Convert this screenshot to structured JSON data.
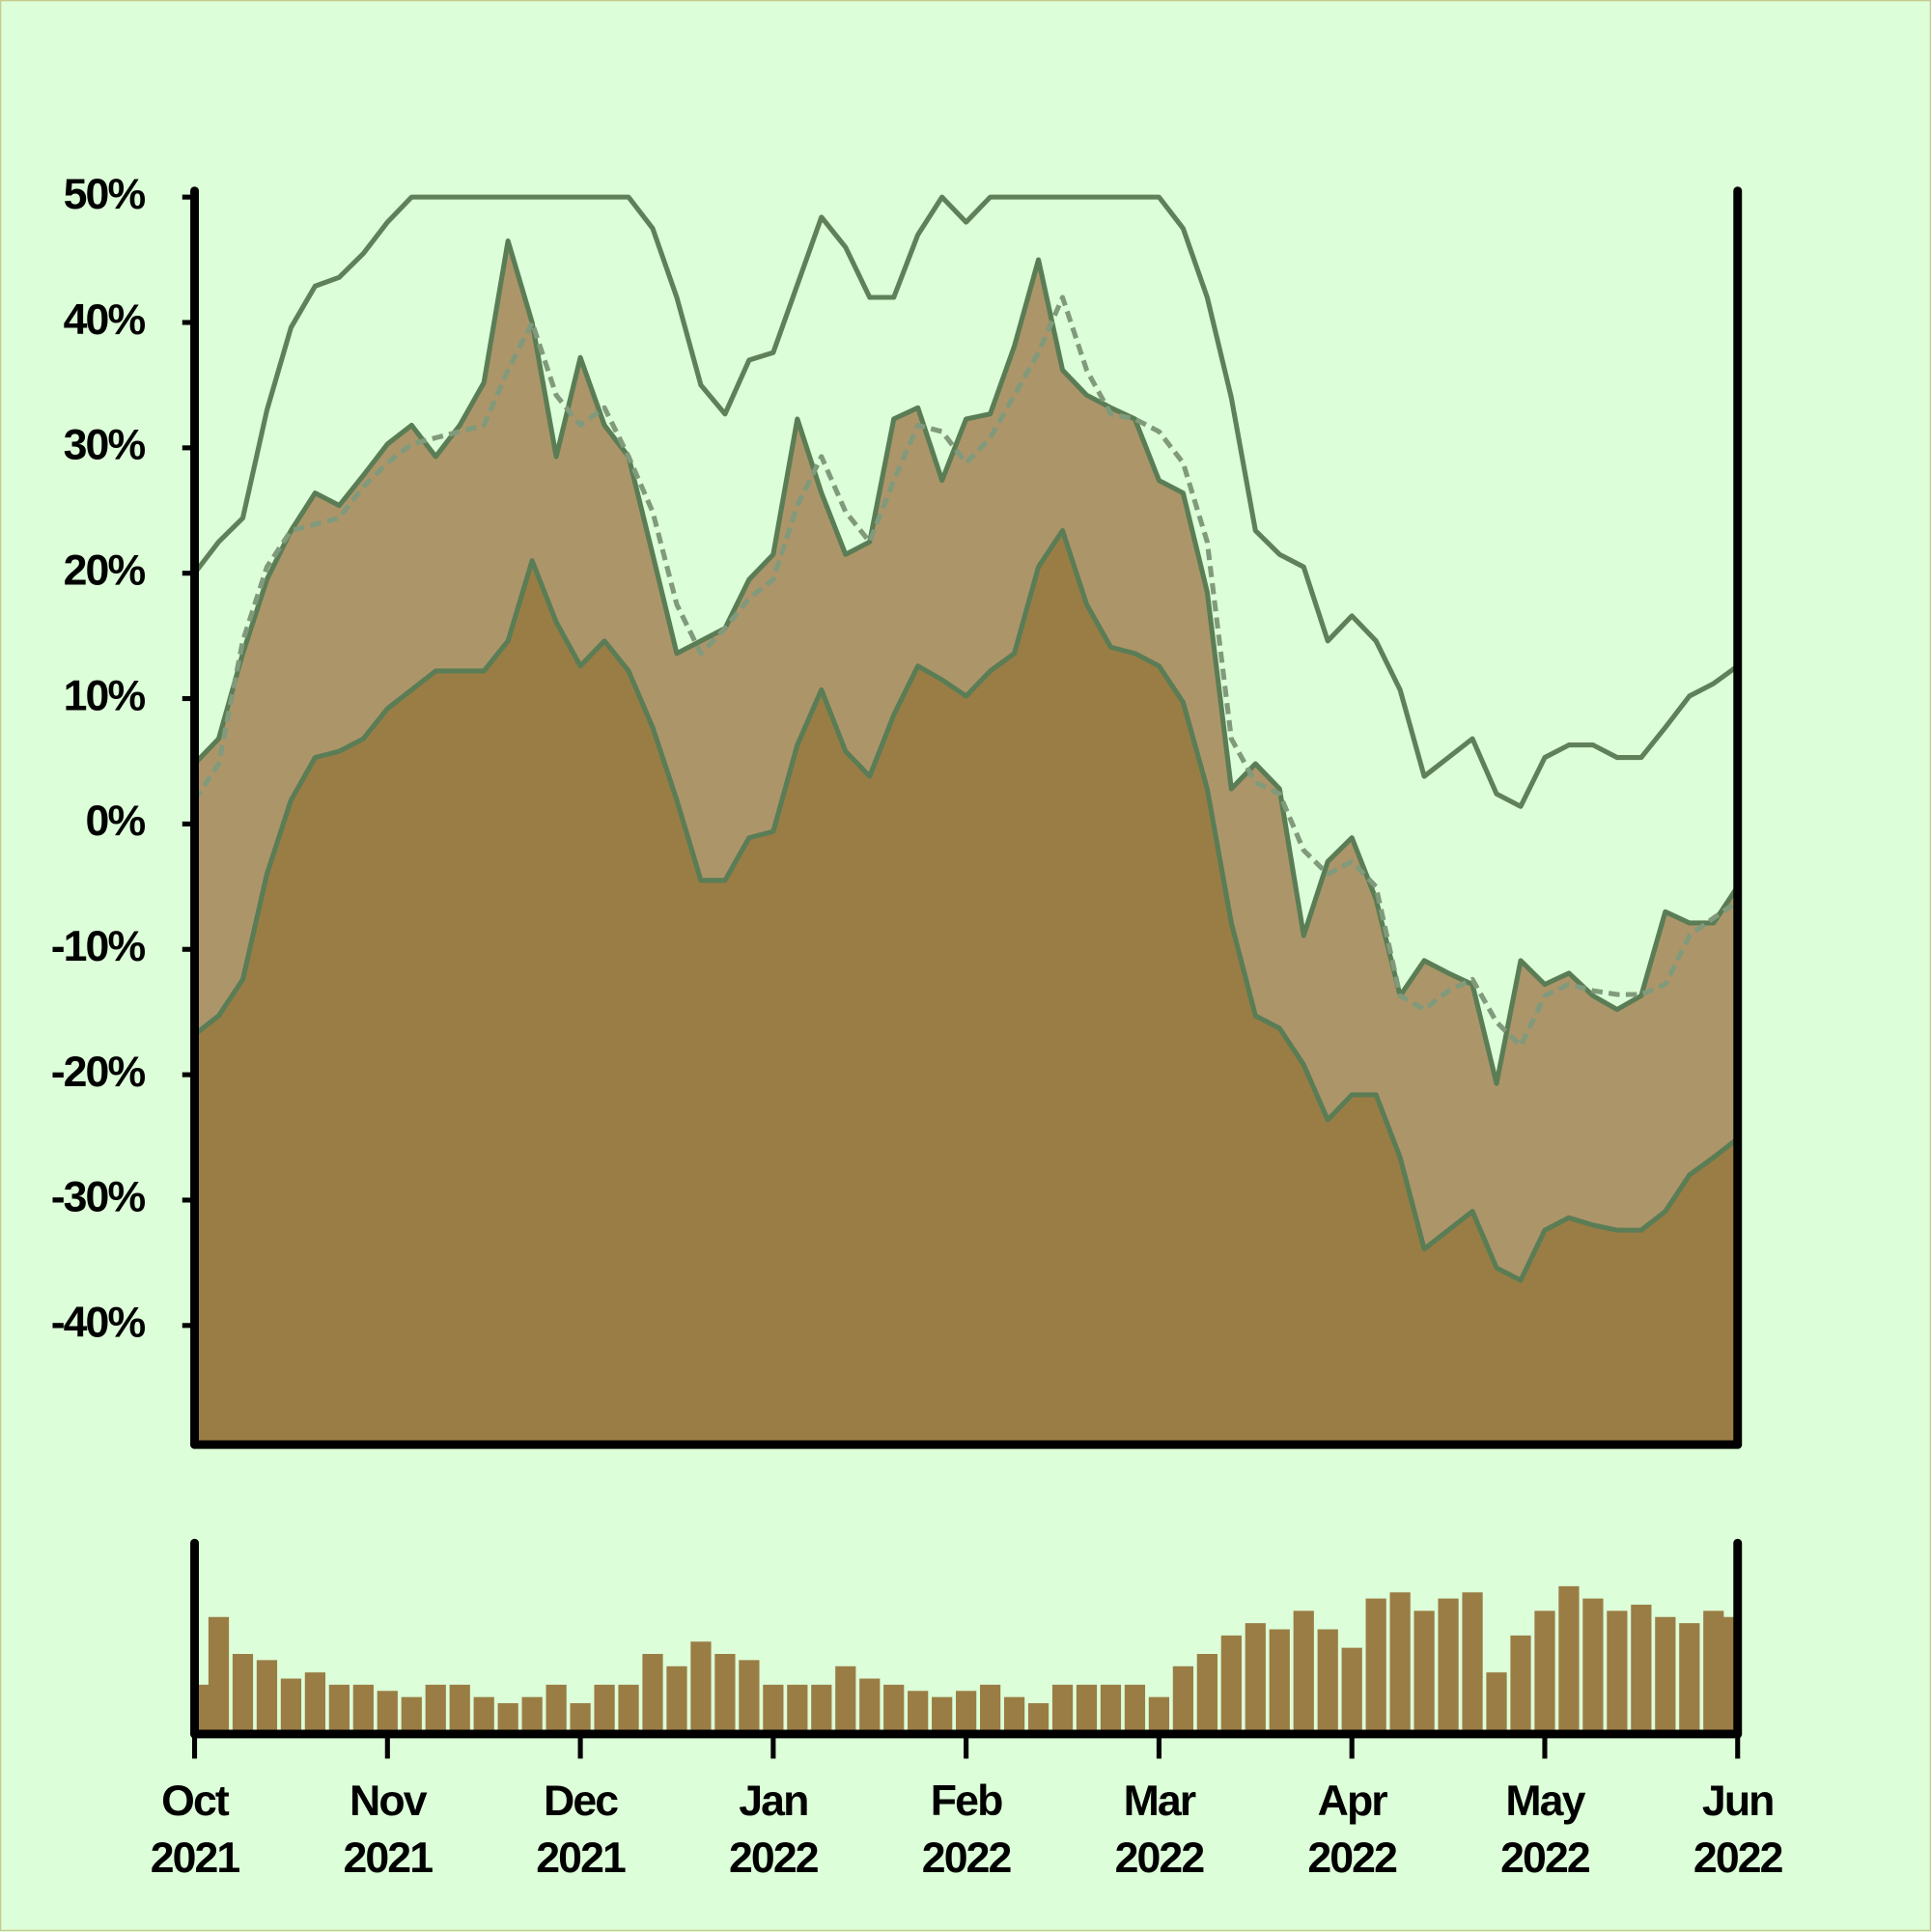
{
  "chart_data": [
    {
      "type": "area",
      "x": [
        0,
        0.125,
        0.25,
        0.375,
        0.5,
        0.625,
        0.75,
        0.875,
        1,
        1.125,
        1.25,
        1.375,
        1.5,
        1.625,
        1.75,
        1.875,
        2,
        2.125,
        2.25,
        2.375,
        2.5,
        2.625,
        2.75,
        2.875,
        3,
        3.125,
        3.25,
        3.375,
        3.5,
        3.625,
        3.75,
        3.875,
        4,
        4.125,
        4.25,
        4.375,
        4.5,
        4.625,
        4.75,
        4.875,
        5,
        5.125,
        5.25,
        5.375,
        5.5,
        5.625,
        5.75,
        5.875,
        6,
        6.125,
        6.25,
        6.375,
        6.5,
        6.625,
        6.75,
        6.875,
        7,
        7.125,
        7.25,
        7.375,
        7.5,
        7.625,
        7.75,
        7.875,
        8
      ],
      "xlim": [
        0,
        8
      ],
      "ylim": [
        -49.5,
        50.2
      ],
      "yticks": [
        {
          "value": 50,
          "label": "50%"
        },
        {
          "value": 40,
          "label": "40%"
        },
        {
          "value": 30,
          "label": "30%"
        },
        {
          "value": 20,
          "label": "20%"
        },
        {
          "value": 10,
          "label": "10%"
        },
        {
          "value": 0,
          "label": "0%"
        },
        {
          "value": -10,
          "label": "-10%"
        },
        {
          "value": -20,
          "label": "-20%"
        },
        {
          "value": -30,
          "label": "-30%"
        },
        {
          "value": -40,
          "label": "-40%"
        }
      ],
      "series": [
        {
          "color": "#5a7d55",
          "fill": "#ad956a",
          "values": [
            4.8,
            6.8,
            13.6,
            19.5,
            23.4,
            26.4,
            25.4,
            27.8,
            30.3,
            31.8,
            29.3,
            31.8,
            35.2,
            46.5,
            40,
            29.3,
            37.2,
            31.8,
            29.3,
            21.5,
            13.6,
            14.6,
            15.6,
            19.5,
            21.5,
            32.3,
            26.4,
            21.5,
            22.5,
            32.3,
            33.2,
            27.4,
            32.3,
            32.7,
            38.1,
            45,
            36.2,
            34.2,
            33.2,
            32.3,
            27.4,
            26.4,
            18.5,
            2.8,
            4.8,
            2.8,
            -8.9,
            -3,
            -1.1,
            -6,
            -13.7,
            -10.9,
            -11.9,
            -12.8,
            -20.7,
            -10.9,
            -12.8,
            -11.9,
            -13.7,
            -14.8,
            -13.7,
            -7,
            -7.9,
            -7.9,
            -5
          ]
        },
        {
          "color": "#5a7d55",
          "fill": "#9a7d45",
          "values": [
            -16.8,
            -15.3,
            -12.4,
            -4,
            1.9,
            5.3,
            5.8,
            6.8,
            9.2,
            10.7,
            12.2,
            12.2,
            12.2,
            14.6,
            21,
            16.1,
            12.6,
            14.6,
            12.2,
            7.7,
            1.9,
            -4.5,
            -4.5,
            -1.1,
            -0.6,
            6.3,
            10.7,
            5.8,
            3.8,
            8.7,
            12.6,
            11.5,
            10.2,
            12.2,
            13.6,
            20.5,
            23.4,
            17.5,
            14.1,
            13.6,
            12.6,
            9.7,
            2.8,
            -7.9,
            -15.3,
            -16.3,
            -19.2,
            -23.6,
            -21.6,
            -21.6,
            -26.6,
            -33.9,
            -32.4,
            -30.9,
            -35.4,
            -36.4,
            -32.4,
            -31.4,
            -32,
            -32.4,
            -32.4,
            -30.9,
            -28,
            -26.6,
            -25.1
          ]
        },
        {
          "color": "#5f8059",
          "values": [
            20,
            22.5,
            24.4,
            33,
            39.6,
            42.9,
            43.6,
            45.5,
            48,
            50,
            50,
            50,
            50,
            50,
            50,
            50,
            50,
            50,
            50,
            47.5,
            42,
            35,
            32.7,
            37,
            37.6,
            43,
            48.4,
            46,
            42,
            42,
            47,
            50,
            48,
            50,
            50,
            50,
            50,
            50,
            50,
            50,
            50,
            47.5,
            42,
            34,
            23.4,
            21.5,
            20.5,
            14.6,
            16.6,
            14.6,
            10.7,
            3.8,
            5.3,
            6.8,
            2.4,
            1.4,
            5.3,
            6.3,
            6.3,
            5.3,
            5.3,
            7.7,
            10.2,
            11.2,
            12.6
          ]
        },
        {
          "color": "#809a7b",
          "dash": true,
          "values": [
            1.9,
            4.8,
            14.6,
            20.5,
            23.4,
            23.9,
            24.4,
            26.9,
            28.8,
            30.3,
            30.8,
            31.3,
            31.8,
            36.2,
            40,
            34.2,
            31.8,
            33.2,
            29.3,
            24.9,
            17.5,
            13.6,
            15.6,
            18,
            19.5,
            25.4,
            29.3,
            24.9,
            22.5,
            27.4,
            31.8,
            31.3,
            28.8,
            30.8,
            34.2,
            37.6,
            42,
            36.2,
            32.7,
            32.3,
            31.3,
            28.8,
            22.5,
            6.8,
            3.3,
            2.4,
            -2.1,
            -4,
            -3,
            -5,
            -13.7,
            -14.8,
            -13.3,
            -12.4,
            -15.8,
            -17.7,
            -13.7,
            -12.8,
            -13.3,
            -13.6,
            -13.6,
            -12.8,
            -8.9,
            -7.5,
            -6.2
          ]
        }
      ]
    },
    {
      "type": "bar",
      "color": "#9a7d45",
      "x": [
        0,
        0.125,
        0.25,
        0.375,
        0.5,
        0.625,
        0.75,
        0.875,
        1,
        1.125,
        1.25,
        1.375,
        1.5,
        1.625,
        1.75,
        1.875,
        2,
        2.125,
        2.25,
        2.375,
        2.5,
        2.625,
        2.75,
        2.875,
        3,
        3.125,
        3.25,
        3.375,
        3.5,
        3.625,
        3.75,
        3.875,
        4,
        4.125,
        4.25,
        4.375,
        4.5,
        4.625,
        4.75,
        4.875,
        5,
        5.125,
        5.25,
        5.375,
        5.5,
        5.625,
        5.75,
        5.875,
        6,
        6.125,
        6.25,
        6.375,
        6.5,
        6.625,
        6.75,
        6.875,
        7,
        7.125,
        7.25,
        7.375,
        7.5,
        7.625,
        7.75,
        7.875,
        8
      ],
      "values": [
        40,
        95,
        65,
        60,
        45,
        50,
        40,
        40,
        35,
        30,
        40,
        40,
        30,
        25,
        30,
        40,
        25,
        40,
        40,
        65,
        55,
        75,
        65,
        60,
        40,
        40,
        40,
        55,
        45,
        40,
        35,
        30,
        35,
        40,
        30,
        25,
        40,
        40,
        40,
        40,
        30,
        55,
        65,
        80,
        90,
        85,
        100,
        85,
        70,
        110,
        115,
        100,
        110,
        115,
        50,
        80,
        100,
        120,
        110,
        100,
        105,
        95,
        90,
        100,
        95
      ],
      "xlim": [
        0,
        8
      ],
      "ylim": [
        0,
        152
      ],
      "xticks": [
        {
          "value": 0,
          "label": "Oct 2021"
        },
        {
          "value": 1,
          "label": "Nov 2021"
        },
        {
          "value": 2,
          "label": "Dec 2021"
        },
        {
          "value": 3,
          "label": "Jan 2022"
        },
        {
          "value": 4,
          "label": "Feb 2022"
        },
        {
          "value": 5,
          "label": "Mar 2022"
        },
        {
          "value": 6,
          "label": "Apr 2022"
        },
        {
          "value": 7,
          "label": "May 2022"
        },
        {
          "value": 8,
          "label": "Jun 2022"
        }
      ]
    }
  ]
}
